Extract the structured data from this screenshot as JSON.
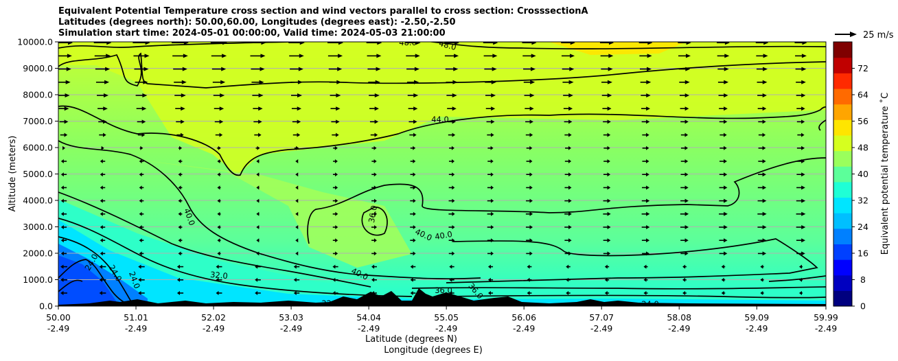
{
  "chart_data": {
    "type": "contour",
    "title_lines": [
      "Equivalent Potential Temperature cross section and wind vectors parallel to cross section: CrosssectionA",
      "Latitudes (degrees north): 50.00,60.00, Longitudes (degrees east): -2.50,-2.50",
      "Simulation start time: 2024-05-01 00:00:00, Valid time: 2024-05-03 21:00:00"
    ],
    "ylabel": "Altitude (meters)",
    "xlabel_lat": "Latitude (degrees N)",
    "xlabel_lon": "Longitude (degrees E)",
    "xlim": [
      50.0,
      59.99
    ],
    "ylim": [
      0,
      10000
    ],
    "x_ticks_lat": [
      "50.00",
      "51.01",
      "52.02",
      "53.03",
      "54.04",
      "55.05",
      "56.06",
      "57.07",
      "58.08",
      "59.09",
      "59.99"
    ],
    "x_ticks_lon": [
      "-2.49",
      "-2.49",
      "-2.49",
      "-2.49",
      "-2.49",
      "-2.49",
      "-2.49",
      "-2.49",
      "-2.49",
      "-2.49",
      "-2.49"
    ],
    "y_ticks": [
      "0.0",
      "1000.0",
      "2000.0",
      "3000.0",
      "4000.0",
      "5000.0",
      "6000.0",
      "7000.0",
      "8000.0",
      "9000.0",
      "10000.0"
    ],
    "grid": "horizontal",
    "colorbar": {
      "label": "Equivalent potential temperature ˚C",
      "ticks": [
        "0",
        "8",
        "16",
        "24",
        "32",
        "40",
        "48",
        "56",
        "64",
        "72"
      ],
      "range": [
        0,
        80
      ],
      "colors": [
        "#00007f",
        "#0000c0",
        "#0000ff",
        "#0040ff",
        "#0080ff",
        "#00bfff",
        "#00e5ff",
        "#1fffd6",
        "#5cff9a",
        "#9aff5c",
        "#d6ff1f",
        "#ffe500",
        "#ffa500",
        "#ff6a00",
        "#ff2a00",
        "#c00000",
        "#7f0000"
      ]
    },
    "wind_key_label": "25 m/s",
    "contour_labels": [
      "48.0",
      "48.0",
      "44.0",
      "40.0",
      "36.0",
      "40.0",
      "40.0",
      "32.0",
      "40.0",
      "36.0",
      "24.0",
      "24.0",
      "24.0",
      "32.0",
      "24.0",
      "36.0"
    ]
  }
}
